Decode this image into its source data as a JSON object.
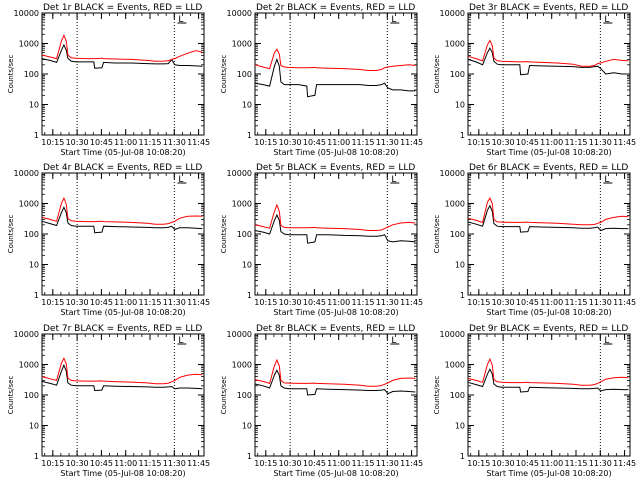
{
  "colors": {
    "events": "#000000",
    "lld": "#ff0000",
    "axes": "#000000",
    "background": "#ffffff"
  },
  "panel_common": {
    "ylabel": "Counts/sec",
    "xlabel": "Start Time (05-Jul-08 10:08:20)",
    "x_tick_labels": [
      "10:15",
      "10:30",
      "10:45",
      "11:00",
      "11:15",
      "11:30",
      "11:45"
    ],
    "y_tick_labels": [
      "1",
      "10",
      "100",
      "1000",
      "10000"
    ],
    "marker_label": "L"
  },
  "chart_data": [
    {
      "type": "line",
      "title": "Det 1r BLACK = Events, RED = LLD",
      "xlabel": "Start Time (05-Jul-08 10:08:20)",
      "ylabel": "Counts/sec",
      "x_unit": "minutes after 10:08:20",
      "y_scale": "log",
      "ylim": [
        1,
        10000
      ],
      "xlim": [
        0,
        100
      ],
      "vlines": [
        21.7,
        81.7
      ],
      "x": [
        0,
        5,
        9,
        12,
        13.5,
        15,
        16,
        18,
        21,
        27,
        32,
        32.5,
        37,
        38,
        45,
        55,
        65,
        70,
        75,
        78,
        80,
        82,
        85,
        90,
        95,
        99
      ],
      "series": [
        {
          "name": "Events",
          "values": [
            320,
            280,
            240,
            600,
            900,
            600,
            330,
            260,
            250,
            250,
            250,
            155,
            160,
            240,
            230,
            230,
            220,
            215,
            215,
            220,
            300,
            200,
            190,
            190,
            185,
            180
          ]
        },
        {
          "name": "LLD",
          "values": [
            420,
            360,
            320,
            1200,
            1850,
            1200,
            420,
            340,
            330,
            320,
            320,
            320,
            330,
            320,
            310,
            300,
            280,
            260,
            265,
            270,
            300,
            320,
            380,
            480,
            580,
            520
          ]
        }
      ]
    },
    {
      "type": "line",
      "title": "Det 2r BLACK = Events, RED = LLD",
      "xlabel": "Start Time (05-Jul-08 10:08:20)",
      "ylabel": "Counts/sec",
      "x_unit": "minutes after 10:08:20",
      "y_scale": "log",
      "ylim": [
        1,
        10000
      ],
      "xlim": [
        0,
        100
      ],
      "vlines": [
        21.7,
        81.7
      ],
      "x": [
        0,
        5,
        9,
        12,
        13.5,
        15,
        16,
        18,
        21,
        27,
        32,
        32.5,
        37,
        38,
        45,
        55,
        65,
        70,
        75,
        78,
        80,
        82,
        85,
        90,
        95,
        99
      ],
      "series": [
        {
          "name": "Events",
          "values": [
            50,
            45,
            40,
            180,
            300,
            180,
            55,
            45,
            45,
            45,
            40,
            18,
            20,
            45,
            45,
            45,
            45,
            42,
            42,
            45,
            50,
            35,
            30,
            30,
            28,
            28
          ]
        },
        {
          "name": "LLD",
          "values": [
            200,
            170,
            150,
            500,
            650,
            450,
            190,
            170,
            165,
            160,
            160,
            160,
            165,
            160,
            155,
            150,
            140,
            130,
            130,
            140,
            160,
            170,
            180,
            190,
            200,
            190
          ]
        }
      ]
    },
    {
      "type": "line",
      "title": "Det 3r BLACK = Events, RED = LLD",
      "xlabel": "Start Time (05-Jul-08 10:08:20)",
      "ylabel": "Counts/sec",
      "x_unit": "minutes after 10:08:20",
      "y_scale": "log",
      "ylim": [
        1,
        10000
      ],
      "xlim": [
        0,
        100
      ],
      "vlines": [
        21.7,
        81.7
      ],
      "x": [
        0,
        5,
        9,
        12,
        13.5,
        15,
        16,
        18,
        21,
        27,
        32,
        32.5,
        37,
        38,
        45,
        55,
        65,
        70,
        75,
        78,
        80,
        82,
        85,
        90,
        95,
        99
      ],
      "series": [
        {
          "name": "Events",
          "values": [
            300,
            250,
            200,
            500,
            700,
            500,
            260,
            210,
            200,
            200,
            200,
            95,
            100,
            190,
            185,
            180,
            175,
            165,
            165,
            175,
            180,
            150,
            100,
            110,
            100,
            100
          ]
        },
        {
          "name": "LLD",
          "values": [
            380,
            320,
            270,
            900,
            1250,
            850,
            330,
            270,
            260,
            255,
            250,
            250,
            255,
            250,
            240,
            230,
            210,
            180,
            180,
            190,
            220,
            230,
            260,
            300,
            280,
            270
          ]
        }
      ]
    },
    {
      "type": "line",
      "title": "Det 4r BLACK = Events, RED = LLD",
      "xlabel": "Start Time (05-Jul-08 10:08:20)",
      "ylabel": "Counts/sec",
      "x_unit": "minutes after 10:08:20",
      "y_scale": "log",
      "ylim": [
        1,
        10000
      ],
      "xlim": [
        0,
        100
      ],
      "vlines": [
        21.7,
        81.7
      ],
      "x": [
        0,
        5,
        9,
        12,
        13.5,
        15,
        16,
        18,
        21,
        27,
        32,
        32.5,
        37,
        38,
        45,
        55,
        65,
        70,
        75,
        78,
        80,
        82,
        85,
        90,
        95,
        99
      ],
      "series": [
        {
          "name": "Events",
          "values": [
            260,
            220,
            190,
            500,
            750,
            500,
            230,
            190,
            180,
            180,
            180,
            110,
            115,
            180,
            175,
            170,
            165,
            160,
            160,
            165,
            180,
            140,
            160,
            160,
            155,
            150
          ]
        },
        {
          "name": "LLD",
          "values": [
            350,
            300,
            260,
            1000,
            1500,
            950,
            320,
            270,
            260,
            255,
            255,
            255,
            260,
            255,
            250,
            240,
            225,
            210,
            210,
            220,
            240,
            260,
            330,
            380,
            390,
            380
          ]
        }
      ]
    },
    {
      "type": "line",
      "title": "Det 5r BLACK = Events, RED = LLD",
      "xlabel": "Start Time (05-Jul-08 10:08:20)",
      "ylabel": "Counts/sec",
      "x_unit": "minutes after 10:08:20",
      "y_scale": "log",
      "ylim": [
        1,
        10000
      ],
      "xlim": [
        0,
        100
      ],
      "vlines": [
        21.7,
        81.7
      ],
      "x": [
        0,
        5,
        9,
        12,
        13.5,
        15,
        16,
        18,
        21,
        27,
        32,
        32.5,
        37,
        38,
        45,
        55,
        65,
        70,
        75,
        78,
        80,
        82,
        85,
        90,
        95,
        99
      ],
      "series": [
        {
          "name": "Events",
          "values": [
            130,
            115,
            100,
            280,
            420,
            280,
            120,
            100,
            95,
            95,
            95,
            50,
            55,
            95,
            95,
            90,
            88,
            85,
            85,
            88,
            95,
            60,
            55,
            60,
            58,
            55
          ]
        },
        {
          "name": "LLD",
          "values": [
            200,
            175,
            155,
            550,
            900,
            550,
            190,
            165,
            160,
            160,
            160,
            160,
            165,
            160,
            155,
            150,
            140,
            130,
            130,
            135,
            150,
            170,
            200,
            230,
            240,
            230
          ]
        }
      ]
    },
    {
      "type": "line",
      "title": "Det 6r BLACK = Events, RED = LLD",
      "xlabel": "Start Time (05-Jul-08 10:08:20)",
      "ylabel": "Counts/sec",
      "x_unit": "minutes after 10:08:20",
      "y_scale": "log",
      "ylim": [
        1,
        10000
      ],
      "xlim": [
        0,
        100
      ],
      "vlines": [
        21.7,
        81.7
      ],
      "x": [
        0,
        5,
        9,
        12,
        13.5,
        15,
        16,
        18,
        21,
        27,
        32,
        32.5,
        37,
        38,
        45,
        55,
        65,
        70,
        75,
        78,
        80,
        82,
        85,
        90,
        95,
        99
      ],
      "series": [
        {
          "name": "Events",
          "values": [
            250,
            210,
            180,
            600,
            850,
            550,
            220,
            180,
            175,
            175,
            175,
            115,
            120,
            175,
            170,
            165,
            160,
            155,
            155,
            160,
            170,
            130,
            150,
            155,
            150,
            150
          ]
        },
        {
          "name": "LLD",
          "values": [
            330,
            280,
            240,
            1100,
            1500,
            1000,
            300,
            250,
            245,
            240,
            240,
            240,
            245,
            240,
            235,
            225,
            210,
            200,
            200,
            205,
            225,
            240,
            300,
            350,
            380,
            370
          ]
        }
      ]
    },
    {
      "type": "line",
      "title": "Det 7r BLACK = Events, RED = LLD",
      "xlabel": "Start Time (05-Jul-08 10:08:20)",
      "ylabel": "Counts/sec",
      "x_unit": "minutes after 10:08:20",
      "y_scale": "log",
      "ylim": [
        1,
        10000
      ],
      "xlim": [
        0,
        100
      ],
      "vlines": [
        21.7,
        81.7
      ],
      "x": [
        0,
        5,
        9,
        12,
        13.5,
        15,
        16,
        18,
        21,
        27,
        32,
        32.5,
        37,
        38,
        45,
        55,
        65,
        70,
        75,
        78,
        80,
        82,
        85,
        90,
        95,
        99
      ],
      "series": [
        {
          "name": "Events",
          "values": [
            280,
            240,
            210,
            600,
            950,
            600,
            250,
            210,
            200,
            200,
            200,
            140,
            145,
            200,
            195,
            190,
            185,
            180,
            180,
            185,
            190,
            160,
            170,
            170,
            165,
            160
          ]
        },
        {
          "name": "LLD",
          "values": [
            400,
            340,
            300,
            1100,
            1600,
            1050,
            360,
            300,
            290,
            285,
            285,
            285,
            290,
            285,
            275,
            265,
            250,
            235,
            235,
            245,
            270,
            300,
            380,
            450,
            480,
            460
          ]
        }
      ]
    },
    {
      "type": "line",
      "title": "Det 8r BLACK = Events, RED = LLD",
      "xlabel": "Start Time (05-Jul-08 10:08:20)",
      "ylabel": "Counts/sec",
      "x_unit": "minutes after 10:08:20",
      "y_scale": "log",
      "ylim": [
        1,
        10000
      ],
      "xlim": [
        0,
        100
      ],
      "vlines": [
        21.7,
        81.7
      ],
      "x": [
        0,
        5,
        9,
        12,
        13.5,
        15,
        16,
        18,
        21,
        27,
        32,
        32.5,
        37,
        38,
        45,
        55,
        65,
        70,
        75,
        78,
        80,
        82,
        85,
        90,
        95,
        99
      ],
      "series": [
        {
          "name": "Events",
          "values": [
            230,
            200,
            170,
            450,
            650,
            450,
            200,
            170,
            160,
            160,
            160,
            100,
            105,
            160,
            155,
            150,
            145,
            140,
            140,
            145,
            150,
            110,
            130,
            135,
            130,
            125
          ]
        },
        {
          "name": "LLD",
          "values": [
            320,
            280,
            240,
            900,
            1400,
            900,
            300,
            250,
            245,
            240,
            240,
            240,
            245,
            240,
            235,
            225,
            210,
            195,
            195,
            205,
            225,
            250,
            300,
            350,
            360,
            350
          ]
        }
      ]
    },
    {
      "type": "line",
      "title": "Det 9r BLACK = Events, RED = LLD",
      "xlabel": "Start Time (05-Jul-08 10:08:20)",
      "ylabel": "Counts/sec",
      "x_unit": "minutes after 10:08:20",
      "y_scale": "log",
      "ylim": [
        1,
        10000
      ],
      "xlim": [
        0,
        100
      ],
      "vlines": [
        21.7,
        81.7
      ],
      "x": [
        0,
        5,
        9,
        12,
        13.5,
        15,
        16,
        18,
        21,
        27,
        32,
        32.5,
        37,
        38,
        45,
        55,
        65,
        70,
        75,
        78,
        80,
        82,
        85,
        90,
        95,
        99
      ],
      "series": [
        {
          "name": "Events",
          "values": [
            260,
            220,
            190,
            480,
            700,
            480,
            230,
            190,
            180,
            180,
            180,
            125,
            130,
            180,
            175,
            170,
            165,
            160,
            160,
            165,
            170,
            135,
            150,
            155,
            150,
            150
          ]
        },
        {
          "name": "LLD",
          "values": [
            350,
            300,
            260,
            1000,
            1500,
            950,
            320,
            270,
            260,
            255,
            255,
            255,
            260,
            255,
            250,
            240,
            225,
            210,
            210,
            220,
            240,
            270,
            330,
            370,
            380,
            370
          ]
        }
      ]
    }
  ]
}
